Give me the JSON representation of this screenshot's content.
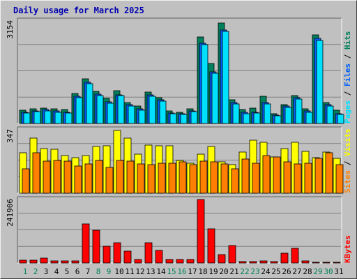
{
  "chart_data": {
    "type": "bar",
    "title": "Daily usage for March 2025",
    "days": [
      "1",
      "2",
      "3",
      "4",
      "5",
      "6",
      "7",
      "8",
      "9",
      "10",
      "11",
      "12",
      "13",
      "14",
      "15",
      "16",
      "17",
      "18",
      "19",
      "20",
      "21",
      "22",
      "23",
      "24",
      "25",
      "26",
      "27",
      "28",
      "29",
      "30",
      "31"
    ],
    "weekend_days": [
      "1",
      "2",
      "8",
      "9",
      "15",
      "16",
      "22",
      "23",
      "29",
      "30"
    ],
    "panels": [
      {
        "name": "hits-files-pages",
        "ymax_label": "3154",
        "ymax": 3154,
        "side_labels": [
          {
            "text": "Pages",
            "color": "#00e0ff"
          },
          {
            "text": " / ",
            "color": "#000000"
          },
          {
            "text": "Files",
            "color": "#0060ff"
          },
          {
            "text": " / ",
            "color": "#000000"
          },
          {
            "text": "Hits",
            "color": "#00805c"
          }
        ],
        "series": [
          {
            "name": "Hits",
            "color": "#00805c",
            "values": [
              400,
              440,
              480,
              460,
              420,
              920,
              1380,
              980,
              780,
              1010,
              650,
              530,
              970,
              800,
              390,
              340,
              450,
              2660,
              1840,
              3080,
              740,
              420,
              480,
              840,
              300,
              580,
              860,
              460,
              2720,
              650,
              410
            ]
          },
          {
            "name": "Files",
            "color": "#0060ff",
            "values": [
              350,
              380,
              420,
              380,
              340,
              840,
              1260,
              910,
              660,
              890,
              580,
              440,
              880,
              720,
              320,
              310,
              390,
              2470,
              1580,
              2880,
              650,
              340,
              350,
              650,
              260,
              530,
              800,
              380,
              2620,
              570,
              300
            ]
          },
          {
            "name": "Pages",
            "color": "#00e0ff",
            "values": [
              320,
              360,
              390,
              350,
              320,
              800,
              1220,
              860,
              620,
              850,
              540,
              410,
              840,
              680,
              290,
              280,
              370,
              2420,
              1540,
              2840,
              610,
              310,
              330,
              610,
              230,
              500,
              760,
              350,
              2560,
              540,
              270
            ]
          }
        ]
      },
      {
        "name": "visits-sites",
        "ymax_label": "347",
        "ymax": 347,
        "side_labels": [
          {
            "text": "Sites",
            "color": "#ff8000"
          },
          {
            "text": " / ",
            "color": "#000000"
          },
          {
            "text": "Visits",
            "color": "#ffff00"
          }
        ],
        "series": [
          {
            "name": "Visits",
            "color": "#ffff00",
            "values": [
              220,
              300,
              245,
              240,
              205,
              195,
              205,
              255,
              260,
              345,
              300,
              215,
              265,
              260,
              260,
              180,
              165,
              215,
              255,
              170,
              155,
              225,
              290,
              280,
              200,
              245,
              280,
              230,
              195,
              225,
              190
            ]
          },
          {
            "name": "Sites",
            "color": "#ff8000",
            "values": [
              135,
              220,
              175,
              180,
              175,
              150,
              160,
              180,
              140,
              180,
              175,
              160,
              155,
              165,
              165,
              170,
              155,
              175,
              170,
              160,
              135,
              185,
              165,
              205,
              200,
              170,
              160,
              165,
              190,
              220,
              155
            ]
          }
        ]
      },
      {
        "name": "kbytes",
        "ymax_label": "241906",
        "ymax": 241906,
        "side_labels": [
          {
            "text": "KBytes",
            "color": "#ff0000"
          }
        ],
        "series": [
          {
            "name": "KBytes",
            "color": "#ff0000",
            "values": [
              10500,
              9500,
              18000,
              8500,
              7000,
              7000,
              148000,
              125000,
              65000,
              76000,
              44000,
              12000,
              76000,
              48000,
              12000,
              13000,
              12000,
              241906,
              131000,
              31000,
              66000,
              4000,
              4000,
              8000,
              6000,
              37000,
              56000,
              8000,
              3000,
              2000,
              2000
            ]
          }
        ]
      }
    ]
  }
}
